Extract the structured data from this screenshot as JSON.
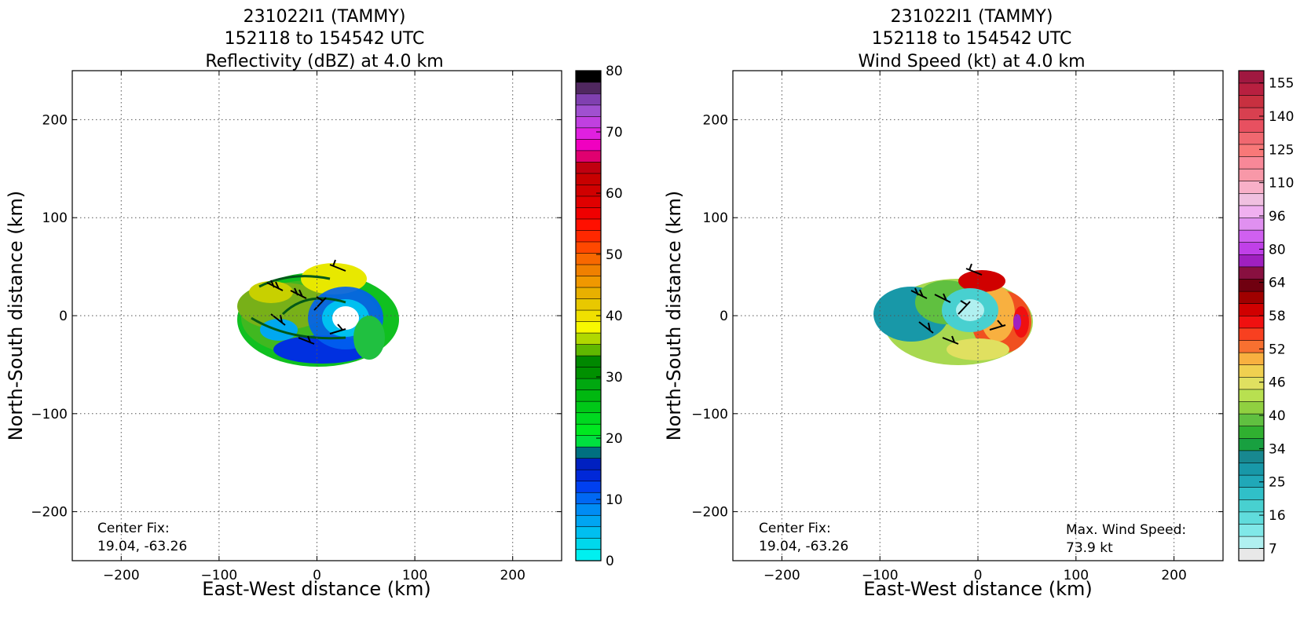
{
  "chart_data": [
    {
      "type": "heatmap",
      "title_lines": [
        "231022I1 (TAMMY)",
        "152118 to 154542 UTC",
        "Reflectivity (dBZ) at 4.0 km"
      ],
      "xlabel": "East-West distance (km)",
      "ylabel": "North-South distance (km)",
      "xlim": [
        -250,
        250
      ],
      "ylim": [
        -250,
        250
      ],
      "xticks": [
        -200,
        -100,
        0,
        100,
        200
      ],
      "yticks": [
        -200,
        -100,
        0,
        100,
        200
      ],
      "xtick_labels": [
        "−200",
        "−100",
        "0",
        "100",
        "200"
      ],
      "ytick_labels": [
        "−200",
        "−100",
        "0",
        "100",
        "200"
      ],
      "grid": true,
      "colorbar": {
        "min": 0,
        "max": 80,
        "ticks": [
          0,
          10,
          20,
          30,
          40,
          50,
          60,
          70,
          80
        ],
        "tick_labels": [
          "0",
          "10",
          "20",
          "30",
          "40",
          "50",
          "60",
          "70",
          "80"
        ],
        "colors": [
          "#00f0f0",
          "#00d8ec",
          "#00bff0",
          "#00a5f2",
          "#008cf4",
          "#0068f4",
          "#0040f0",
          "#0028d8",
          "#0020c0",
          "#007080",
          "#00e040",
          "#00e820",
          "#00d820",
          "#00c818",
          "#00b810",
          "#00a810",
          "#009000",
          "#008800",
          "#60b800",
          "#b0d800",
          "#f8f800",
          "#f0e000",
          "#e8c800",
          "#e8b000",
          "#f09800",
          "#f08000",
          "#f86800",
          "#ff4800",
          "#ff2800",
          "#ff1000",
          "#f00000",
          "#e00000",
          "#d00000",
          "#c80000",
          "#c00010",
          "#e00070",
          "#f000c0",
          "#e020e0",
          "#c040e0",
          "#a050d0",
          "#8040b0",
          "#502860",
          "#000000"
        ]
      },
      "annotations": [
        {
          "lines": [
            "Center Fix:",
            "19.04, -63.26"
          ]
        }
      ]
    },
    {
      "type": "heatmap",
      "title_lines": [
        "231022I1 (TAMMY)",
        "152118 to 154542 UTC",
        "Wind Speed (kt) at 4.0 km"
      ],
      "xlabel": "East-West distance (km)",
      "ylabel": "North-South distance (km)",
      "xlim": [
        -250,
        250
      ],
      "ylim": [
        -250,
        250
      ],
      "xticks": [
        -200,
        -100,
        0,
        100,
        200
      ],
      "yticks": [
        -200,
        -100,
        0,
        100,
        200
      ],
      "xtick_labels": [
        "−200",
        "−100",
        "0",
        "100",
        "200"
      ],
      "ytick_labels": [
        "−200",
        "−100",
        "0",
        "100",
        "200"
      ],
      "grid": true,
      "colorbar": {
        "tick_labels": [
          "7",
          "16",
          "25",
          "34",
          "40",
          "46",
          "52",
          "58",
          "64",
          "80",
          "96",
          "110",
          "125",
          "140",
          "155"
        ],
        "colors": [
          "#e8e8e8",
          "#b0f0f0",
          "#80e8e8",
          "#60dcdc",
          "#48d0d0",
          "#30c0c8",
          "#20a8b8",
          "#1898a8",
          "#188890",
          "#18a040",
          "#30b030",
          "#60c040",
          "#90d040",
          "#b8e050",
          "#e0e060",
          "#f0d050",
          "#f8b040",
          "#f87030",
          "#f84020",
          "#f01010",
          "#d00000",
          "#a00000",
          "#700010",
          "#881040",
          "#a020c0",
          "#c040e8",
          "#d060f0",
          "#e090f0",
          "#f0b0f0",
          "#f0c0e0",
          "#f8b0c8",
          "#f898a8",
          "#f88898",
          "#f87878",
          "#f06870",
          "#e85060",
          "#d84050",
          "#c83040",
          "#b82040",
          "#a01840"
        ]
      },
      "annotations": [
        {
          "lines": [
            "Center Fix:",
            "19.04, -63.26"
          ]
        },
        {
          "lines": [
            "Max. Wind Speed:",
            "73.9 kt"
          ]
        }
      ]
    }
  ]
}
